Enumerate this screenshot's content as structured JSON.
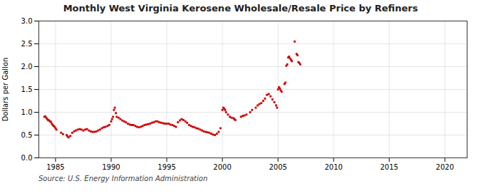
{
  "chart_data": {
    "type": "scatter",
    "title": "Monthly West Virginia Kerosene Wholesale/Resale Price by Refiners",
    "ylabel": "Dollars per Gallon",
    "annotations": [
      "Source: U.S. Energy Information Administration"
    ],
    "color": "#cc0000",
    "marker": "square",
    "grid": true,
    "xlim": [
      1983.5,
      2022
    ],
    "ylim": [
      0.0,
      3.0
    ],
    "xticks": [
      1985,
      1990,
      1995,
      2000,
      2005,
      2010,
      2015,
      2020
    ],
    "yticks": [
      {
        "value": 0,
        "label": "0.0"
      },
      0.5,
      {
        "value": 1,
        "label": "1.0"
      },
      1.5,
      {
        "value": 2,
        "label": "2.0"
      },
      2.5,
      {
        "value": 3,
        "label": "3.0"
      }
    ],
    "x": [
      1984.0,
      1984.08,
      1984.17,
      1984.25,
      1984.33,
      1984.42,
      1984.5,
      1984.58,
      1984.67,
      1984.75,
      1984.83,
      1984.92,
      1985.0,
      1985.08,
      1985.5,
      1985.67,
      1986.0,
      1986.08,
      1986.17,
      1986.33,
      1986.5,
      1986.67,
      1986.83,
      1987.0,
      1987.17,
      1987.33,
      1987.5,
      1987.67,
      1987.83,
      1988.0,
      1988.17,
      1988.33,
      1988.5,
      1988.67,
      1988.83,
      1989.0,
      1989.17,
      1989.33,
      1989.5,
      1989.67,
      1989.83,
      1990.0,
      1990.08,
      1990.17,
      1990.25,
      1990.33,
      1990.42,
      1990.5,
      1990.67,
      1990.83,
      1991.0,
      1991.17,
      1991.33,
      1991.5,
      1991.67,
      1991.83,
      1992.0,
      1992.17,
      1992.33,
      1992.5,
      1992.67,
      1992.83,
      1993.0,
      1993.17,
      1993.33,
      1993.5,
      1993.67,
      1993.83,
      1994.0,
      1994.17,
      1994.33,
      1994.5,
      1994.67,
      1994.83,
      1995.0,
      1995.17,
      1995.33,
      1995.5,
      1995.67,
      1995.83,
      1996.0,
      1996.17,
      1996.33,
      1996.5,
      1996.67,
      1996.83,
      1997.0,
      1997.17,
      1997.33,
      1997.5,
      1997.67,
      1997.83,
      1998.0,
      1998.17,
      1998.33,
      1998.5,
      1998.67,
      1998.83,
      1999.0,
      1999.17,
      1999.33,
      1999.5,
      1999.67,
      1999.83,
      2000.0,
      2000.08,
      2000.17,
      2000.25,
      2000.33,
      2000.5,
      2000.67,
      2000.83,
      2001.0,
      2001.08,
      2001.17,
      2001.67,
      2001.83,
      2002.0,
      2002.17,
      2002.5,
      2002.67,
      2003.0,
      2003.17,
      2003.33,
      2003.5,
      2003.67,
      2003.83,
      2004.0,
      2004.17,
      2004.33,
      2004.5,
      2004.67,
      2004.83,
      2004.92,
      2005.0,
      2005.08,
      2005.17,
      2005.25,
      2005.33,
      2005.58,
      2005.67,
      2005.75,
      2005.83,
      2005.92,
      2006.0,
      2006.08,
      2006.17,
      2006.25,
      2006.5,
      2006.67,
      2006.75,
      2006.83,
      2006.92,
      2007.0
    ],
    "values": [
      0.9,
      0.91,
      0.88,
      0.85,
      0.83,
      0.82,
      0.8,
      0.79,
      0.75,
      0.72,
      0.7,
      0.68,
      0.65,
      0.62,
      0.55,
      0.52,
      0.5,
      0.47,
      0.45,
      0.48,
      0.55,
      0.58,
      0.6,
      0.62,
      0.63,
      0.62,
      0.6,
      0.62,
      0.63,
      0.6,
      0.58,
      0.57,
      0.57,
      0.58,
      0.6,
      0.62,
      0.65,
      0.67,
      0.68,
      0.7,
      0.72,
      0.8,
      0.85,
      0.9,
      1.05,
      1.1,
      0.98,
      0.9,
      0.88,
      0.85,
      0.82,
      0.8,
      0.78,
      0.75,
      0.73,
      0.72,
      0.72,
      0.7,
      0.68,
      0.67,
      0.68,
      0.7,
      0.72,
      0.73,
      0.74,
      0.75,
      0.77,
      0.78,
      0.8,
      0.8,
      0.78,
      0.77,
      0.76,
      0.75,
      0.75,
      0.75,
      0.73,
      0.72,
      0.7,
      0.68,
      0.78,
      0.82,
      0.85,
      0.83,
      0.8,
      0.77,
      0.72,
      0.7,
      0.68,
      0.67,
      0.65,
      0.64,
      0.62,
      0.6,
      0.58,
      0.57,
      0.56,
      0.55,
      0.53,
      0.51,
      0.5,
      0.53,
      0.57,
      0.65,
      1.05,
      1.1,
      1.08,
      1.05,
      1.0,
      0.95,
      0.9,
      0.88,
      0.87,
      0.85,
      0.83,
      0.9,
      0.92,
      0.93,
      0.95,
      1.0,
      1.05,
      1.1,
      1.15,
      1.18,
      1.2,
      1.25,
      1.3,
      1.38,
      1.4,
      1.35,
      1.28,
      1.22,
      1.15,
      1.1,
      1.5,
      1.55,
      1.52,
      1.48,
      1.45,
      1.62,
      1.65,
      2.02,
      2.05,
      2.2,
      2.22,
      2.18,
      2.15,
      2.12,
      2.55,
      2.28,
      2.25,
      2.1,
      2.08,
      2.05
    ]
  }
}
